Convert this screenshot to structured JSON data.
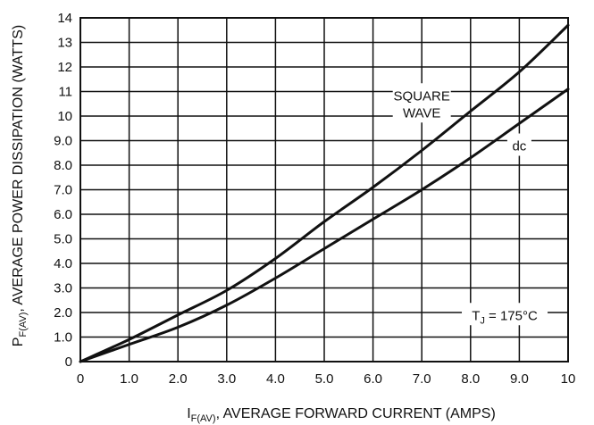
{
  "chart_data": {
    "type": "line",
    "title": "",
    "xlabel": {
      "main": "I",
      "subscript": "F(AV)",
      "rest": ", AVERAGE FORWARD CURRENT (AMPS)"
    },
    "ylabel": {
      "main": "P",
      "subscript": "F(AV)",
      "rest": ", AVERAGE POWER DISSIPATION (WATTS)"
    },
    "xlim": [
      0,
      10
    ],
    "ylim": [
      0,
      14
    ],
    "grid": true,
    "x_ticks": [
      {
        "value": 0,
        "label": "0"
      },
      {
        "value": 1,
        "label": "1.0"
      },
      {
        "value": 2,
        "label": "2.0"
      },
      {
        "value": 3,
        "label": "3.0"
      },
      {
        "value": 4,
        "label": "4.0"
      },
      {
        "value": 5,
        "label": "5.0"
      },
      {
        "value": 6,
        "label": "6.0"
      },
      {
        "value": 7,
        "label": "7.0"
      },
      {
        "value": 8,
        "label": "8.0"
      },
      {
        "value": 9,
        "label": "9.0"
      },
      {
        "value": 10,
        "label": "10"
      }
    ],
    "y_ticks": [
      {
        "value": 0,
        "label": "0"
      },
      {
        "value": 1,
        "label": "1.0"
      },
      {
        "value": 2,
        "label": "2.0"
      },
      {
        "value": 3,
        "label": "3.0"
      },
      {
        "value": 4,
        "label": "4.0"
      },
      {
        "value": 5,
        "label": "5.0"
      },
      {
        "value": 6,
        "label": "6.0"
      },
      {
        "value": 7,
        "label": "7.0"
      },
      {
        "value": 8,
        "label": "8.0"
      },
      {
        "value": 9,
        "label": "9.0"
      },
      {
        "value": 10,
        "label": "10"
      },
      {
        "value": 11,
        "label": "11"
      },
      {
        "value": 12,
        "label": "12"
      },
      {
        "value": 13,
        "label": "13"
      },
      {
        "value": 14,
        "label": "14"
      }
    ],
    "series": [
      {
        "name": "SQUARE WAVE",
        "x": [
          0,
          1,
          2,
          3,
          4,
          5,
          6,
          7,
          8,
          9,
          10
        ],
        "y": [
          0,
          0.9,
          1.9,
          2.9,
          4.2,
          5.7,
          7.1,
          8.6,
          10.2,
          11.8,
          13.7
        ]
      },
      {
        "name": "dc",
        "x": [
          0,
          1,
          2,
          3,
          4,
          5,
          6,
          7,
          8,
          9,
          10
        ],
        "y": [
          0,
          0.7,
          1.4,
          2.3,
          3.4,
          4.6,
          5.8,
          7.0,
          8.3,
          9.7,
          11.1
        ]
      }
    ],
    "annotations": [
      {
        "name": "square-wave",
        "lines": [
          "SQUARE",
          "WAVE"
        ],
        "x": 7.0,
        "y": 10.5
      },
      {
        "name": "dc",
        "lines": [
          "dc"
        ],
        "x": 9.0,
        "y": 8.8
      },
      {
        "name": "tj",
        "lines": [
          "T"
        ],
        "sub": "J",
        "rest": " = 175°C",
        "x": 8.7,
        "y": 1.9
      }
    ]
  }
}
